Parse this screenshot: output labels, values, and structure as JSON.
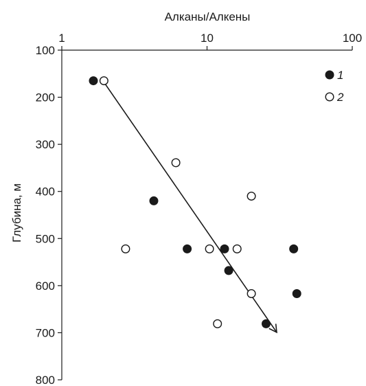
{
  "chart_data": {
    "type": "scatter",
    "xlabel": "Алканы/Алкены",
    "ylabel": "Глубина, м",
    "x_scale": "log",
    "xlim": [
      1,
      100
    ],
    "ylim": [
      100,
      800
    ],
    "y_inverted": true,
    "x_axis_position": "top",
    "x_ticks": [
      1,
      10,
      100
    ],
    "x_tick_labels": [
      "1",
      "10",
      "100"
    ],
    "y_ticks": [
      100,
      200,
      300,
      400,
      500,
      600,
      700,
      800
    ],
    "y_tick_labels": [
      "100",
      "200",
      "300",
      "400",
      "500",
      "600",
      "700",
      "800"
    ],
    "grid": false,
    "legend_position": "top-right",
    "series": [
      {
        "name": "1",
        "marker": "filled-circle",
        "color": "#1a1a1a",
        "points": [
          {
            "x": 1.65,
            "y": 165
          },
          {
            "x": 4.3,
            "y": 420
          },
          {
            "x": 7.3,
            "y": 522
          },
          {
            "x": 13.2,
            "y": 522
          },
          {
            "x": 14.1,
            "y": 568
          },
          {
            "x": 25.5,
            "y": 681
          },
          {
            "x": 39.5,
            "y": 522
          },
          {
            "x": 41.5,
            "y": 617
          }
        ]
      },
      {
        "name": "2",
        "marker": "open-circle",
        "color": "#1a1a1a",
        "points": [
          {
            "x": 1.95,
            "y": 165
          },
          {
            "x": 2.75,
            "y": 522
          },
          {
            "x": 6.1,
            "y": 339
          },
          {
            "x": 10.4,
            "y": 522
          },
          {
            "x": 11.8,
            "y": 681
          },
          {
            "x": 16.1,
            "y": 522
          },
          {
            "x": 20.2,
            "y": 410
          },
          {
            "x": 20.2,
            "y": 617
          }
        ]
      }
    ],
    "trend_arrow": {
      "from": {
        "x": 1.95,
        "y": 168
      },
      "to": {
        "x": 30,
        "y": 698
      }
    }
  }
}
